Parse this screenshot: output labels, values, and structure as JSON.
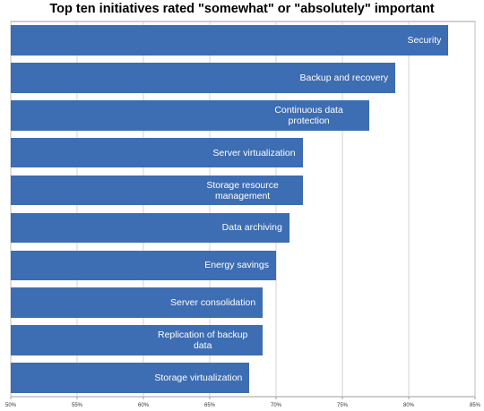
{
  "chart_data": {
    "type": "bar",
    "orientation": "horizontal",
    "title": "Top ten initiatives rated \"somewhat\" or \"absolutely\" important",
    "categories": [
      "Security",
      "Backup and recovery",
      "Continuous data protection",
      "Server virtualization",
      "Storage resource management",
      "Data archiving",
      "Energy savings",
      "Server consolidation",
      "Replication of backup data",
      "Storage virtualization"
    ],
    "values": [
      83,
      79,
      77,
      72,
      72,
      71,
      70,
      69,
      69,
      68
    ],
    "color": "#3d6db3",
    "xlim": [
      50,
      85
    ],
    "xticks": [
      {
        "value": 50,
        "label": "50%"
      },
      {
        "value": 55,
        "label": "55%"
      },
      {
        "value": 60,
        "label": "60%"
      },
      {
        "value": 65,
        "label": "65%"
      },
      {
        "value": 70,
        "label": "70%"
      },
      {
        "value": 75,
        "label": "75%"
      },
      {
        "value": 80,
        "label": "80%"
      },
      {
        "value": 85,
        "label": "85%"
      }
    ],
    "grid": true
  }
}
